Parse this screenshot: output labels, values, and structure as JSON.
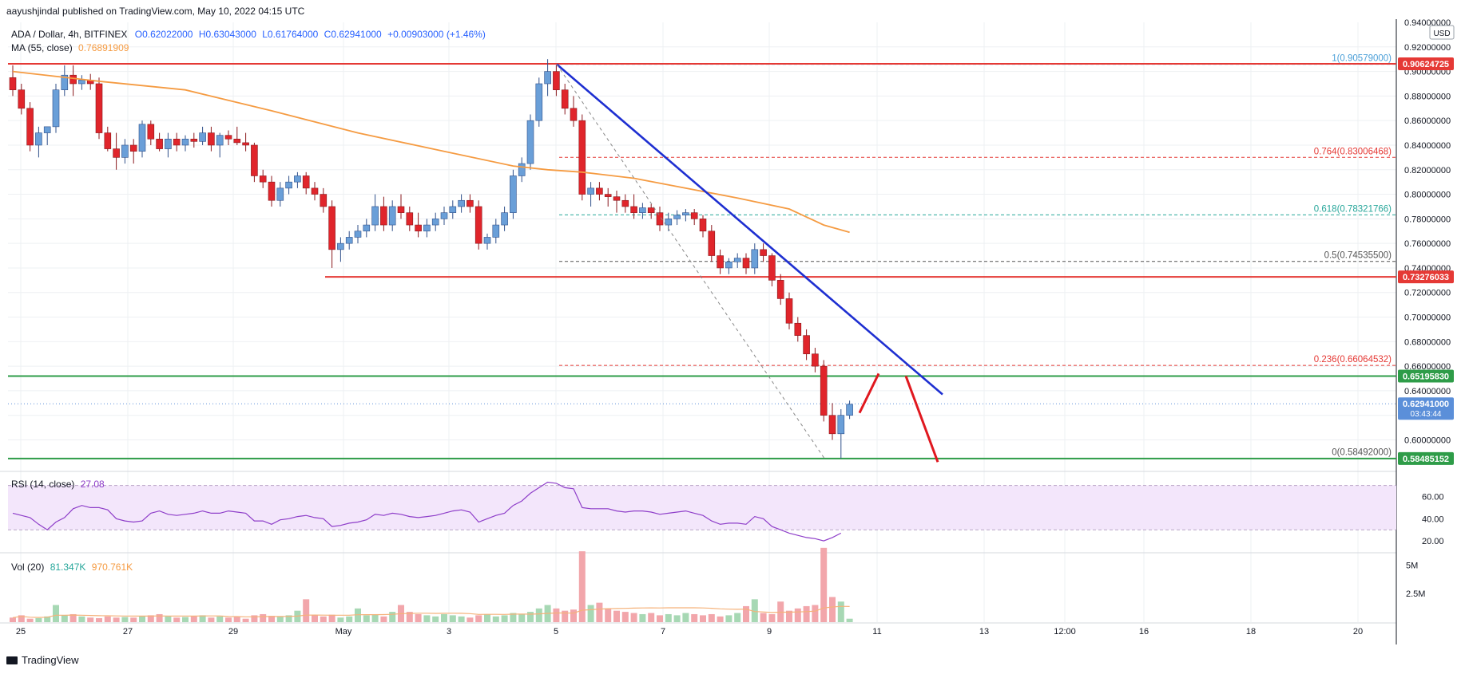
{
  "header": {
    "publisher": "aayushjindal published on TradingView.com, May 10, 2022 04:15 UTC"
  },
  "footer": {
    "brand": "TradingView"
  },
  "colors": {
    "up": "#6a9fd8",
    "down": "#e0252b",
    "ma": "#f59b42",
    "rsi": "#8e3ec9",
    "redline": "#e53935",
    "greenline": "#2e9c48",
    "trend": "#1e2fd1"
  },
  "chart_data": [
    {
      "type": "candlestick",
      "symbol_line": "ADA / Dollar, 4h, BITFINEX",
      "ohlc": {
        "open": "O0.62022000",
        "high": "H0.63043000",
        "low": "L0.61764000",
        "close": "C0.62941000",
        "change": "+0.00903000 (+1.46%)"
      },
      "ma_label": "MA (55, close)",
      "ma_value": "0.76891909",
      "currency": "USD",
      "ylim": [
        0.575,
        0.94
      ],
      "y_ticks": [
        "0.94000000",
        "0.92000000",
        "0.90000000",
        "0.88000000",
        "0.86000000",
        "0.84000000",
        "0.82000000",
        "0.80000000",
        "0.78000000",
        "0.76000000",
        "0.74000000",
        "0.72000000",
        "0.70000000",
        "0.68000000",
        "0.66000000",
        "0.64000000",
        "0.62000000",
        "0.60000000"
      ],
      "x_ticks": [
        "25",
        "27",
        "29",
        "May",
        "3",
        "5",
        "7",
        "9",
        "11",
        "13",
        "12:00",
        "16",
        "18",
        "20"
      ],
      "price_badges": [
        {
          "label": "0.90624725",
          "value": 0.90625,
          "color": "#e53935"
        },
        {
          "label": "0.73276033",
          "value": 0.73276,
          "color": "#e53935"
        },
        {
          "label": "0.65195830",
          "value": 0.65196,
          "color": "#2e9c48"
        },
        {
          "label": "0.62941000",
          "value": 0.62941,
          "color": "#5b8fd9",
          "sub": "03:43:44"
        },
        {
          "label": "0.58485152",
          "value": 0.58485,
          "color": "#2e9c48"
        }
      ],
      "fib_levels": [
        {
          "label": "1(0.90579000)",
          "value": 0.90579,
          "color": "#4a9fd8"
        },
        {
          "label": "0.764(0.83006468)",
          "value": 0.83006,
          "color": "#e53935"
        },
        {
          "label": "0.618(0.78321766)",
          "value": 0.78322,
          "color": "#26a69a"
        },
        {
          "label": "0.5(0.74535500)",
          "value": 0.74536,
          "color": "#555555"
        },
        {
          "label": "0.236(0.66064532)",
          "value": 0.66065,
          "color": "#e53935"
        },
        {
          "label": "0(0.58492000)",
          "value": 0.58492,
          "color": "#555555"
        }
      ],
      "candles": [
        [
          0.895,
          0.905,
          0.88,
          0.885
        ],
        [
          0.885,
          0.89,
          0.865,
          0.87
        ],
        [
          0.87,
          0.875,
          0.835,
          0.84
        ],
        [
          0.84,
          0.855,
          0.83,
          0.85
        ],
        [
          0.85,
          0.855,
          0.84,
          0.855
        ],
        [
          0.855,
          0.89,
          0.85,
          0.885
        ],
        [
          0.885,
          0.905,
          0.88,
          0.897
        ],
        [
          0.897,
          0.905,
          0.88,
          0.89
        ],
        [
          0.89,
          0.897,
          0.885,
          0.893
        ],
        [
          0.893,
          0.898,
          0.885,
          0.89
        ],
        [
          0.89,
          0.895,
          0.845,
          0.85
        ],
        [
          0.85,
          0.855,
          0.835,
          0.837
        ],
        [
          0.837,
          0.85,
          0.82,
          0.83
        ],
        [
          0.83,
          0.845,
          0.825,
          0.84
        ],
        [
          0.84,
          0.845,
          0.825,
          0.835
        ],
        [
          0.835,
          0.86,
          0.83,
          0.857
        ],
        [
          0.857,
          0.86,
          0.84,
          0.845
        ],
        [
          0.845,
          0.85,
          0.835,
          0.837
        ],
        [
          0.837,
          0.85,
          0.83,
          0.845
        ],
        [
          0.845,
          0.85,
          0.835,
          0.84
        ],
        [
          0.84,
          0.848,
          0.835,
          0.845
        ],
        [
          0.845,
          0.85,
          0.838,
          0.843
        ],
        [
          0.843,
          0.855,
          0.84,
          0.85
        ],
        [
          0.85,
          0.855,
          0.835,
          0.84
        ],
        [
          0.84,
          0.85,
          0.83,
          0.848
        ],
        [
          0.848,
          0.852,
          0.84,
          0.845
        ],
        [
          0.845,
          0.855,
          0.84,
          0.842
        ],
        [
          0.842,
          0.85,
          0.835,
          0.84
        ],
        [
          0.84,
          0.842,
          0.81,
          0.815
        ],
        [
          0.815,
          0.82,
          0.805,
          0.81
        ],
        [
          0.81,
          0.815,
          0.79,
          0.795
        ],
        [
          0.795,
          0.81,
          0.79,
          0.805
        ],
        [
          0.805,
          0.815,
          0.8,
          0.81
        ],
        [
          0.81,
          0.818,
          0.805,
          0.815
        ],
        [
          0.815,
          0.818,
          0.8,
          0.805
        ],
        [
          0.805,
          0.81,
          0.795,
          0.8
        ],
        [
          0.8,
          0.805,
          0.785,
          0.79
        ],
        [
          0.79,
          0.795,
          0.74,
          0.755
        ],
        [
          0.755,
          0.765,
          0.745,
          0.76
        ],
        [
          0.76,
          0.77,
          0.755,
          0.765
        ],
        [
          0.765,
          0.775,
          0.76,
          0.77
        ],
        [
          0.77,
          0.78,
          0.765,
          0.775
        ],
        [
          0.775,
          0.8,
          0.77,
          0.79
        ],
        [
          0.79,
          0.798,
          0.77,
          0.775
        ],
        [
          0.775,
          0.795,
          0.77,
          0.79
        ],
        [
          0.79,
          0.8,
          0.78,
          0.785
        ],
        [
          0.785,
          0.79,
          0.77,
          0.775
        ],
        [
          0.775,
          0.785,
          0.765,
          0.77
        ],
        [
          0.77,
          0.78,
          0.765,
          0.775
        ],
        [
          0.775,
          0.785,
          0.77,
          0.78
        ],
        [
          0.78,
          0.79,
          0.775,
          0.785
        ],
        [
          0.785,
          0.795,
          0.78,
          0.79
        ],
        [
          0.79,
          0.8,
          0.785,
          0.795
        ],
        [
          0.795,
          0.8,
          0.785,
          0.79
        ],
        [
          0.79,
          0.795,
          0.755,
          0.76
        ],
        [
          0.76,
          0.768,
          0.755,
          0.765
        ],
        [
          0.765,
          0.78,
          0.76,
          0.775
        ],
        [
          0.775,
          0.79,
          0.77,
          0.785
        ],
        [
          0.785,
          0.82,
          0.78,
          0.815
        ],
        [
          0.815,
          0.83,
          0.81,
          0.825
        ],
        [
          0.825,
          0.865,
          0.82,
          0.86
        ],
        [
          0.86,
          0.895,
          0.855,
          0.89
        ],
        [
          0.89,
          0.91,
          0.88,
          0.9
        ],
        [
          0.9,
          0.905,
          0.88,
          0.885
        ],
        [
          0.885,
          0.89,
          0.865,
          0.87
        ],
        [
          0.87,
          0.88,
          0.855,
          0.86
        ],
        [
          0.86,
          0.865,
          0.795,
          0.8
        ],
        [
          0.8,
          0.81,
          0.79,
          0.805
        ],
        [
          0.805,
          0.81,
          0.795,
          0.8
        ],
        [
          0.8,
          0.805,
          0.79,
          0.798
        ],
        [
          0.798,
          0.803,
          0.785,
          0.795
        ],
        [
          0.795,
          0.8,
          0.785,
          0.79
        ],
        [
          0.79,
          0.8,
          0.78,
          0.785
        ],
        [
          0.785,
          0.793,
          0.78,
          0.789
        ],
        [
          0.789,
          0.792,
          0.78,
          0.785
        ],
        [
          0.785,
          0.79,
          0.77,
          0.775
        ],
        [
          0.775,
          0.785,
          0.77,
          0.78
        ],
        [
          0.78,
          0.787,
          0.775,
          0.783
        ],
        [
          0.783,
          0.788,
          0.778,
          0.785
        ],
        [
          0.785,
          0.788,
          0.775,
          0.78
        ],
        [
          0.78,
          0.783,
          0.765,
          0.77
        ],
        [
          0.77,
          0.775,
          0.745,
          0.75
        ],
        [
          0.75,
          0.755,
          0.735,
          0.74
        ],
        [
          0.74,
          0.748,
          0.735,
          0.745
        ],
        [
          0.745,
          0.752,
          0.74,
          0.748
        ],
        [
          0.748,
          0.752,
          0.735,
          0.74
        ],
        [
          0.74,
          0.76,
          0.735,
          0.755
        ],
        [
          0.755,
          0.76,
          0.745,
          0.75
        ],
        [
          0.75,
          0.752,
          0.725,
          0.73
        ],
        [
          0.73,
          0.735,
          0.71,
          0.715
        ],
        [
          0.715,
          0.72,
          0.69,
          0.695
        ],
        [
          0.695,
          0.7,
          0.68,
          0.685
        ],
        [
          0.685,
          0.69,
          0.665,
          0.67
        ],
        [
          0.67,
          0.675,
          0.655,
          0.66
        ],
        [
          0.66,
          0.665,
          0.615,
          0.62
        ],
        [
          0.62,
          0.63,
          0.6,
          0.605
        ],
        [
          0.605,
          0.625,
          0.585,
          0.62
        ],
        [
          0.62,
          0.632,
          0.617,
          0.629
        ]
      ],
      "ma_points": [
        [
          0,
          0.9
        ],
        [
          10,
          0.892
        ],
        [
          20,
          0.885
        ],
        [
          30,
          0.868
        ],
        [
          40,
          0.85
        ],
        [
          50,
          0.835
        ],
        [
          58,
          0.823
        ],
        [
          62,
          0.82
        ],
        [
          66,
          0.818
        ],
        [
          72,
          0.813
        ],
        [
          78,
          0.805
        ],
        [
          84,
          0.797
        ],
        [
          90,
          0.788
        ],
        [
          94,
          0.775
        ],
        [
          97,
          0.769
        ]
      ],
      "rsi": {
        "label": "RSI (14, close)",
        "value": "27.08",
        "ticks": [
          "60.00",
          "40.00",
          "20.00"
        ],
        "band": [
          30,
          70
        ],
        "ylim": [
          10,
          82
        ],
        "values": [
          45,
          43,
          41,
          35,
          30,
          37,
          41,
          49,
          52,
          50,
          50,
          48,
          40,
          38,
          37,
          38,
          45,
          47,
          44,
          43,
          44,
          45,
          47,
          45,
          45,
          47,
          46,
          45,
          38,
          38,
          35,
          39,
          40,
          42,
          43,
          41,
          40,
          33,
          34,
          36,
          37,
          39,
          44,
          43,
          45,
          44,
          42,
          41,
          42,
          43,
          45,
          47,
          48,
          46,
          37,
          40,
          43,
          45,
          52,
          56,
          63,
          68,
          73,
          72,
          68,
          67,
          50,
          49,
          49,
          49,
          47,
          46,
          47,
          47,
          46,
          44,
          45,
          46,
          47,
          45,
          43,
          38,
          35,
          36,
          36,
          35,
          42,
          40,
          33,
          30,
          27,
          25,
          23,
          22,
          20,
          23,
          27
        ]
      },
      "volume": {
        "label": "Vol (20)",
        "v1": "81.347K",
        "v2": "970.761K",
        "ticks": [
          "5M",
          "2.5M"
        ],
        "ymax": 6000000,
        "values": [
          400000,
          600000,
          300000,
          350000,
          500000,
          1500000,
          600000,
          700000,
          500000,
          400000,
          350000,
          500000,
          400000,
          450000,
          400000,
          500000,
          600000,
          700000,
          500000,
          400000,
          450000,
          500000,
          600000,
          400000,
          500000,
          400000,
          450000,
          300000,
          600000,
          700000,
          550000,
          500000,
          600000,
          1000000,
          2000000,
          600000,
          500000,
          650000,
          400000,
          500000,
          1200000,
          600000,
          700000,
          500000,
          900000,
          1500000,
          900000,
          700000,
          600000,
          500000,
          700000,
          600000,
          500000,
          400000,
          600000,
          700000,
          500000,
          600000,
          800000,
          700000,
          900000,
          1200000,
          1500000,
          1200000,
          1000000,
          1100000,
          6200000,
          1500000,
          1700000,
          1200000,
          1000000,
          900000,
          800000,
          700000,
          800000,
          600000,
          700000,
          600000,
          800000,
          700000,
          600000,
          700000,
          500000,
          600000,
          800000,
          1400000,
          2000000,
          800000,
          700000,
          1800000,
          1000000,
          1200000,
          1400000,
          1500000,
          6500000,
          2200000,
          1800000,
          300000
        ]
      }
    }
  ]
}
